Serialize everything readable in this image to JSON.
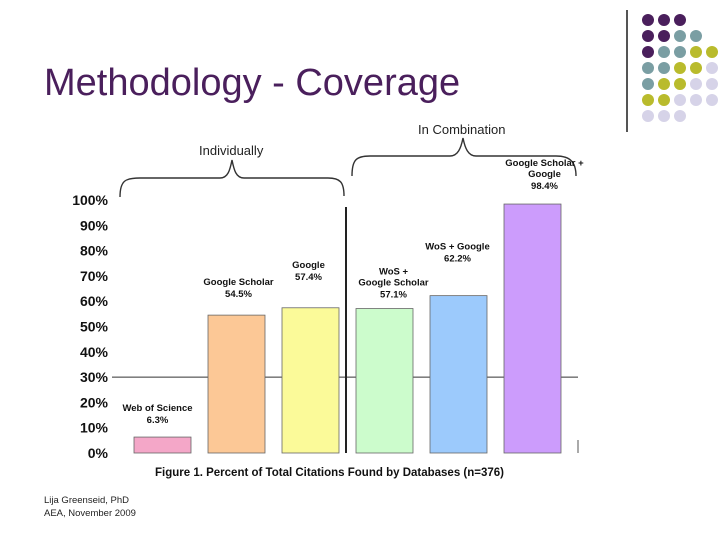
{
  "slide": {
    "title": "Methodology - Coverage",
    "group_combination": "In Combination",
    "group_individual": "Individually",
    "author": "Lija Greenseid, PhD",
    "event": "AEA, November 2009"
  },
  "palette": {
    "purple": "#4a1f5c",
    "teal": "#7a9ea3",
    "olive": "#b9bb2c",
    "lavender": "#d6d3e8"
  },
  "chart_data": {
    "type": "bar",
    "title": "Figure 1. Percent of Total Citations Found by Databases (n=376)",
    "ylim": [
      0,
      100
    ],
    "yticks": [
      "0%",
      "10%",
      "20%",
      "30%",
      "40%",
      "50%",
      "60%",
      "70%",
      "80%",
      "90%",
      "100%"
    ],
    "reference_line": 30,
    "bars": [
      {
        "name": "Web of Science",
        "value": 6.3,
        "value_label": "6.3%",
        "color": "#f4a7c8"
      },
      {
        "name": "Google Scholar",
        "value": 54.5,
        "value_label": "54.5%",
        "color": "#fcc896"
      },
      {
        "name": "Google",
        "value": 57.4,
        "value_label": "57.4%",
        "color": "#fbfa99"
      },
      {
        "name": "WoS + Google Scholar",
        "value": 57.1,
        "value_label": "57.1%",
        "color": "#ccfccc"
      },
      {
        "name": "WoS + Google",
        "value": 62.2,
        "value_label": "62.2%",
        "color": "#9ccafc"
      },
      {
        "name": "Google Scholar + Google",
        "value": 98.4,
        "value_label": "98.4%",
        "color": "#cc9cfc"
      }
    ]
  }
}
